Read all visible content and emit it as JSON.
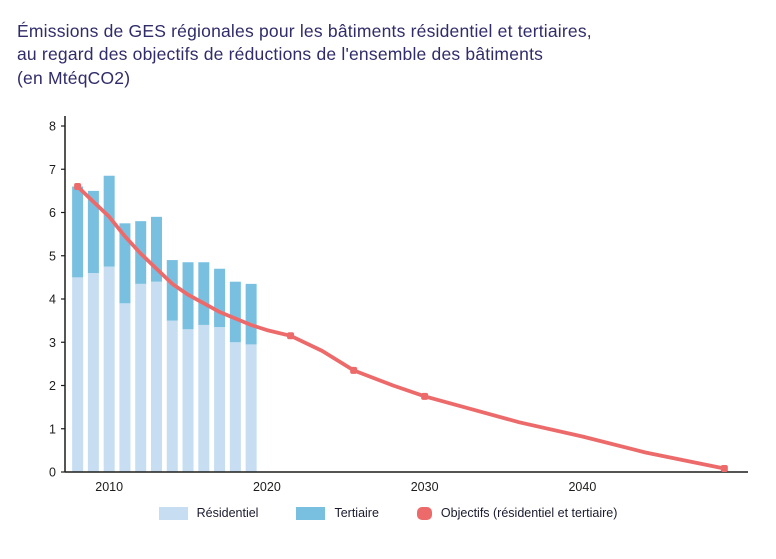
{
  "page": {
    "title_lines": [
      "Émissions de GES régionales pour les bâtiments résidentiel et tertiaires,",
      "au regard des objectifs de réductions de l'ensemble des bâtiments",
      "(en MtéqCO2)"
    ]
  },
  "colors": {
    "title": "#302c6a",
    "axis": "#1d1d1b",
    "residentiel": "#c7def2",
    "tertiaire": "#79c0e0",
    "objectifs": "#ed6a6b"
  },
  "chart_data": {
    "type": "stacked-bar+line",
    "title": "Émissions de GES régionales pour les bâtiments résidentiel et tertiaires, au regard des objectifs de réductions de l'ensemble des bâtiments (en MtéqCO2)",
    "unit": "MtéqCO2",
    "ylim": [
      0,
      8
    ],
    "yticks": [
      0,
      1,
      2,
      3,
      4,
      5,
      6,
      7,
      8
    ],
    "xlim": [
      2007.2,
      2050.5
    ],
    "xticks": [
      2010,
      2020,
      2030,
      2040
    ],
    "grid": false,
    "legend_position": "bottom",
    "bars": {
      "years": [
        2008,
        2009,
        2010,
        2011,
        2012,
        2013,
        2014,
        2015,
        2016,
        2017,
        2018,
        2019
      ],
      "series": [
        {
          "name": "Résidentiel",
          "color": "#c7def2",
          "values": [
            4.5,
            4.6,
            4.75,
            3.9,
            4.35,
            4.4,
            3.5,
            3.3,
            3.4,
            3.35,
            3.0,
            2.95
          ]
        },
        {
          "name": "Tertiaire",
          "color": "#79c0e0",
          "values": [
            2.1,
            1.9,
            2.1,
            1.85,
            1.45,
            1.5,
            1.4,
            1.55,
            1.45,
            1.35,
            1.4,
            1.4
          ]
        }
      ]
    },
    "line": {
      "name": "Objectifs (résidentiel et tertiaire)",
      "color": "#ed6a6b",
      "points": [
        [
          2008,
          6.6
        ],
        [
          2009,
          6.25
        ],
        [
          2010,
          5.9
        ],
        [
          2011,
          5.45
        ],
        [
          2012,
          5.05
        ],
        [
          2013,
          4.7
        ],
        [
          2014,
          4.35
        ],
        [
          2015,
          4.1
        ],
        [
          2016,
          3.9
        ],
        [
          2017,
          3.7
        ],
        [
          2018,
          3.55
        ],
        [
          2019,
          3.4
        ],
        [
          2020,
          3.28
        ],
        [
          2021.5,
          3.15
        ],
        [
          2023.5,
          2.8
        ],
        [
          2025.5,
          2.35
        ],
        [
          2028,
          2.0
        ],
        [
          2030,
          1.75
        ],
        [
          2033,
          1.45
        ],
        [
          2036,
          1.15
        ],
        [
          2040,
          0.82
        ],
        [
          2044,
          0.45
        ],
        [
          2049,
          0.08
        ]
      ],
      "markers": [
        [
          2008,
          6.6
        ],
        [
          2021.5,
          3.15
        ],
        [
          2025.5,
          2.35
        ],
        [
          2030,
          1.75
        ],
        [
          2049,
          0.08
        ]
      ]
    }
  }
}
